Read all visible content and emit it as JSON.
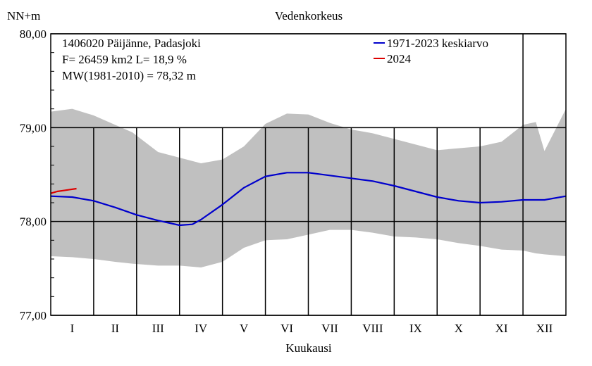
{
  "chart_data": {
    "type": "line",
    "title": "Vedenkorkeus",
    "ylabel": "NN+m",
    "xlabel": "Kuukausi",
    "ylim": [
      77.0,
      80.0
    ],
    "xlim": [
      0,
      12
    ],
    "yticks": [
      "77,00",
      "78,00",
      "79,00",
      "80,00"
    ],
    "ytick_values": [
      77.0,
      78.0,
      79.0,
      80.0
    ],
    "categories": [
      "I",
      "II",
      "III",
      "IV",
      "V",
      "VI",
      "VII",
      "VIII",
      "IX",
      "X",
      "XI",
      "XII"
    ],
    "grid": true,
    "legend_position": "top-right",
    "info_lines": [
      "1406020 Päijänne, Padasjoki",
      "F=  26459 km2 L=  18,9 %",
      "MW(1981-2010) = 78,32 m"
    ],
    "colors": {
      "mean": "#0000cc",
      "current": "#dd0000",
      "range": "#c0c0c0"
    },
    "series": [
      {
        "name": "1971-2023 keskiarvo",
        "x": [
          0,
          0.5,
          1.0,
          1.5,
          2.0,
          2.5,
          3.0,
          3.3,
          3.5,
          4.0,
          4.5,
          5.0,
          5.5,
          6.0,
          6.5,
          7.0,
          7.5,
          8.0,
          8.5,
          9.0,
          9.5,
          10.0,
          10.5,
          11.0,
          11.5,
          12.0
        ],
        "values": [
          78.27,
          78.26,
          78.22,
          78.15,
          78.07,
          78.01,
          77.96,
          77.97,
          78.02,
          78.18,
          78.36,
          78.48,
          78.52,
          78.52,
          78.49,
          78.46,
          78.43,
          78.38,
          78.32,
          78.26,
          78.22,
          78.2,
          78.21,
          78.23,
          78.23,
          78.27
        ]
      },
      {
        "name": "2024",
        "x": [
          0,
          0.15,
          0.3,
          0.45,
          0.6
        ],
        "values": [
          78.3,
          78.32,
          78.33,
          78.34,
          78.35
        ]
      }
    ],
    "range_band": {
      "x": [
        0,
        0.5,
        1.0,
        1.5,
        1.9,
        2.5,
        3.0,
        3.5,
        4.0,
        4.5,
        5.0,
        5.5,
        6.0,
        6.5,
        7.0,
        7.5,
        8.0,
        8.5,
        9.0,
        9.5,
        10.0,
        10.5,
        11.0,
        11.3,
        11.5,
        12.0
      ],
      "max": [
        79.17,
        79.2,
        79.13,
        79.03,
        78.95,
        78.74,
        78.68,
        78.62,
        78.66,
        78.8,
        79.04,
        79.15,
        79.14,
        79.05,
        78.98,
        78.94,
        78.88,
        78.82,
        78.76,
        78.78,
        78.8,
        78.85,
        79.03,
        79.06,
        78.75,
        79.2
      ],
      "min": [
        77.63,
        77.62,
        77.6,
        77.57,
        77.55,
        77.53,
        77.53,
        77.51,
        77.57,
        77.72,
        77.8,
        77.81,
        77.86,
        77.91,
        77.91,
        77.88,
        77.84,
        77.83,
        77.81,
        77.77,
        77.74,
        77.7,
        77.69,
        77.66,
        77.65,
        77.63
      ]
    }
  }
}
